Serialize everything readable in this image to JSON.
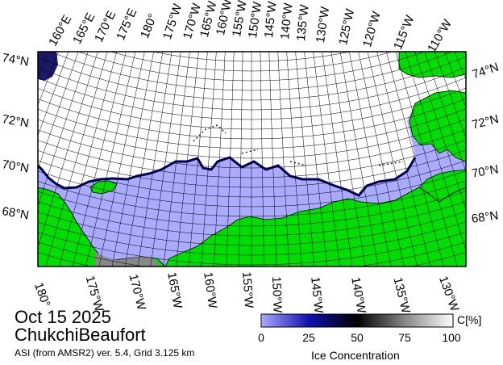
{
  "map": {
    "date": "Oct 15 2025",
    "region": "ChukchiBeaufort",
    "source": "ASI (from AMSR2) ver. 5.4,  Grid 3.125 km",
    "top_longitudes": [
      "160°E",
      "165°E",
      "170°E",
      "175°E",
      "180°",
      "175°W",
      "170°W",
      "165°W",
      "160°W",
      "155°W",
      "150°W",
      "145°W",
      "140°W",
      "135°W",
      "130°W",
      "125°W",
      "120°W",
      "115°W",
      "110°W"
    ],
    "bottom_longitudes": [
      "180°",
      "175°W",
      "170°W",
      "165°W",
      "160°W",
      "155°W",
      "150°W",
      "145°W",
      "140°W",
      "135°W",
      "130°W"
    ],
    "left_latitudes": [
      "74°N",
      "72°N",
      "70°N",
      "68°N"
    ],
    "right_latitudes": [
      "74°N",
      "72°N",
      "70°N",
      "68°N"
    ],
    "colors": {
      "land": "#00dd00",
      "open_water": "#aaaaff",
      "ice": "#ffffff",
      "ice_edge": "#000066",
      "grid": "#000000",
      "no_data": "#888888"
    }
  },
  "colorbar": {
    "title": "Ice Concentration",
    "unit": "C[%]",
    "ticks": [
      "0",
      "25",
      "50",
      "75",
      "100"
    ],
    "stops": [
      "#aaaaff",
      "#0000aa",
      "#000000",
      "#888888",
      "#ffffff"
    ]
  }
}
